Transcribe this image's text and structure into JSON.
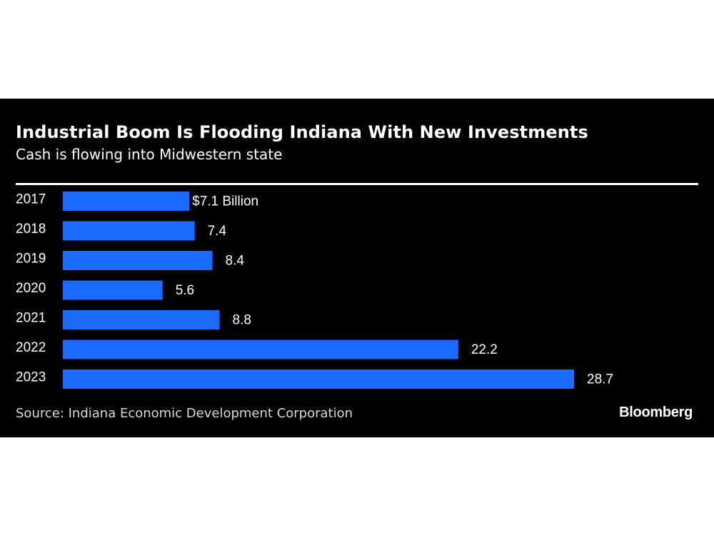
{
  "colors": {
    "background": "#000000",
    "bar": "#1a6bff",
    "text": "#ffffff"
  },
  "chart_data": {
    "type": "bar",
    "orientation": "horizontal",
    "title": "Industrial Boom Is Flooding Indiana With New Investments",
    "subtitle": "Cash is flowing into Midwestern state",
    "categories": [
      "2017",
      "2018",
      "2019",
      "2020",
      "2021",
      "2022",
      "2023"
    ],
    "values": [
      7.1,
      7.4,
      8.4,
      5.6,
      8.8,
      22.2,
      28.7
    ],
    "value_labels": [
      "$7.1 Billion",
      "7.4",
      "8.4",
      "5.6",
      "8.8",
      "22.2",
      "28.7"
    ],
    "unit": "Billion",
    "xlim": [
      0,
      28.7
    ],
    "grid": false,
    "legend": "none"
  },
  "footer": {
    "source": "Source: Indiana Economic Development Corporation",
    "brand": "Bloomberg"
  }
}
